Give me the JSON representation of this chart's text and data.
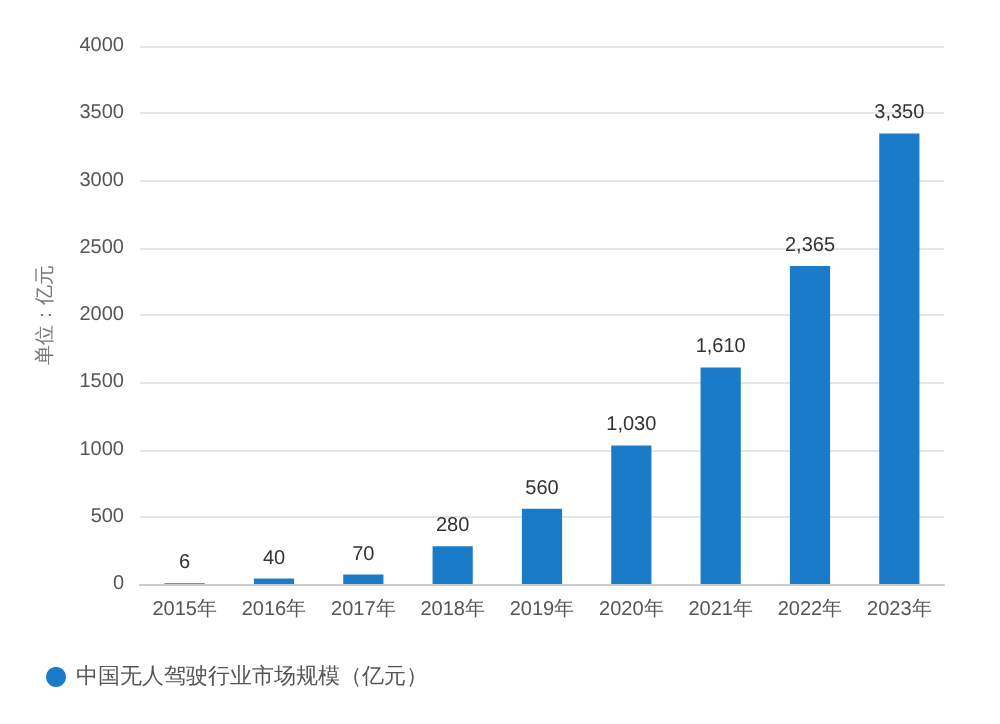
{
  "chart_data": {
    "type": "bar",
    "ylabel": "单位：亿元",
    "categories": [
      "2015年",
      "2016年",
      "2017年",
      "2018年",
      "2019年",
      "2020年",
      "2021年",
      "2022年",
      "2023年"
    ],
    "series": [
      {
        "name": "中国无人驾驶行业市场规模（亿元）",
        "color": "#1a7cc9",
        "values": [
          6,
          40,
          70,
          280,
          560,
          1030,
          1610,
          2365,
          3350
        ],
        "value_labels": [
          "6",
          "40",
          "70",
          "280",
          "560",
          "1,030",
          "1,610",
          "2,365",
          "3,350"
        ]
      }
    ],
    "ylim": [
      0,
      4000
    ],
    "yticks": [
      0,
      500,
      1000,
      1500,
      2000,
      2500,
      3000,
      3500,
      4000
    ],
    "grid": "y",
    "legend": "bottom"
  }
}
